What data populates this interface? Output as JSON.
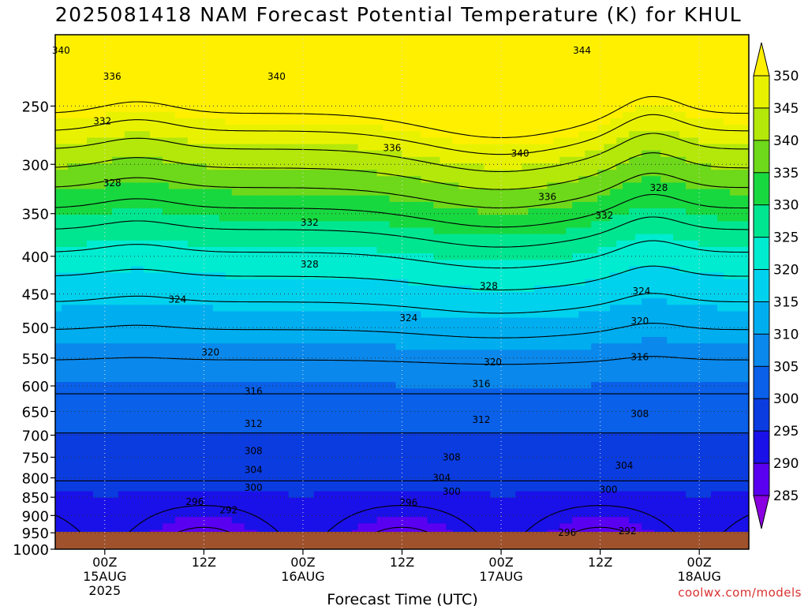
{
  "chart_data": {
    "type": "heatmap",
    "title": "2025081418 NAM Forecast Potential Temperature (K) for KHUL",
    "xlabel": "Forecast Time (UTC)",
    "ylabel": "",
    "y_scale": "log-pressure",
    "y_ticks": [
      250,
      300,
      350,
      400,
      450,
      500,
      550,
      600,
      650,
      700,
      750,
      800,
      850,
      900,
      950,
      1000
    ],
    "ylim": [
      1000,
      200
    ],
    "x_ticks": [
      {
        "line1": "00Z",
        "line2": "15AUG",
        "line3": "2025"
      },
      {
        "line1": "12Z",
        "line2": "",
        "line3": ""
      },
      {
        "line1": "00Z",
        "line2": "16AUG",
        "line3": ""
      },
      {
        "line1": "12Z",
        "line2": "",
        "line3": ""
      },
      {
        "line1": "00Z",
        "line2": "17AUG",
        "line3": ""
      },
      {
        "line1": "12Z",
        "line2": "",
        "line3": ""
      },
      {
        "line1": "00Z",
        "line2": "18AUG",
        "line3": ""
      }
    ],
    "x_hours": [
      0,
      12,
      24,
      36,
      48,
      60,
      72
    ],
    "xlim_hours": [
      -6,
      78
    ],
    "colorbar": {
      "levels": [
        285,
        290,
        295,
        300,
        305,
        310,
        315,
        320,
        325,
        330,
        335,
        340,
        345,
        350
      ],
      "colors": [
        "#8a00e0",
        "#5a00f0",
        "#1a10e8",
        "#0a3ce0",
        "#0a60e8",
        "#0a88ec",
        "#00aef0",
        "#00d2ee",
        "#00ecd0",
        "#00e690",
        "#18d840",
        "#6ed81a",
        "#b4e80a",
        "#e8f200",
        "#fff000"
      ]
    },
    "contour_labels": [
      {
        "text": "340",
        "hour": -5.3,
        "p": 210
      },
      {
        "text": "336",
        "hour": 0.9,
        "p": 228
      },
      {
        "text": "340",
        "hour": 20.8,
        "p": 228
      },
      {
        "text": "344",
        "hour": 57.8,
        "p": 210
      },
      {
        "text": "332",
        "hour": -0.3,
        "p": 262
      },
      {
        "text": "336",
        "hour": 34.8,
        "p": 285
      },
      {
        "text": "340",
        "hour": 50.3,
        "p": 290
      },
      {
        "text": "328",
        "hour": 0.9,
        "p": 318
      },
      {
        "text": "336",
        "hour": 53.6,
        "p": 332
      },
      {
        "text": "332",
        "hour": 24.8,
        "p": 360
      },
      {
        "text": "332",
        "hour": 60.5,
        "p": 352
      },
      {
        "text": "328",
        "hour": 67.1,
        "p": 323
      },
      {
        "text": "328",
        "hour": 24.8,
        "p": 410
      },
      {
        "text": "328",
        "hour": 46.5,
        "p": 439
      },
      {
        "text": "324",
        "hour": 8.8,
        "p": 458
      },
      {
        "text": "324",
        "hour": 65.0,
        "p": 446
      },
      {
        "text": "324",
        "hour": 36.8,
        "p": 485
      },
      {
        "text": "320",
        "hour": 64.8,
        "p": 490
      },
      {
        "text": "320",
        "hour": 12.8,
        "p": 540
      },
      {
        "text": "320",
        "hour": 47.0,
        "p": 557
      },
      {
        "text": "316",
        "hour": 64.8,
        "p": 548
      },
      {
        "text": "316",
        "hour": 45.6,
        "p": 596
      },
      {
        "text": "316",
        "hour": 18.0,
        "p": 610
      },
      {
        "text": "312",
        "hour": 18.0,
        "p": 675
      },
      {
        "text": "312",
        "hour": 45.6,
        "p": 667
      },
      {
        "text": "308",
        "hour": 64.8,
        "p": 655
      },
      {
        "text": "308",
        "hour": 18.0,
        "p": 735
      },
      {
        "text": "308",
        "hour": 42.0,
        "p": 750
      },
      {
        "text": "304",
        "hour": 18.0,
        "p": 780
      },
      {
        "text": "304",
        "hour": 40.8,
        "p": 800
      },
      {
        "text": "304",
        "hour": 62.9,
        "p": 770
      },
      {
        "text": "300",
        "hour": 18.0,
        "p": 825
      },
      {
        "text": "300",
        "hour": 42.0,
        "p": 835
      },
      {
        "text": "300",
        "hour": 61.0,
        "p": 830
      },
      {
        "text": "296",
        "hour": 10.9,
        "p": 862
      },
      {
        "text": "296",
        "hour": 36.8,
        "p": 864
      },
      {
        "text": "296",
        "hour": 56.0,
        "p": 950
      },
      {
        "text": "292",
        "hour": 15.0,
        "p": 885
      },
      {
        "text": "292",
        "hour": 63.3,
        "p": 945
      }
    ]
  },
  "credit": "coolwx.com/models"
}
